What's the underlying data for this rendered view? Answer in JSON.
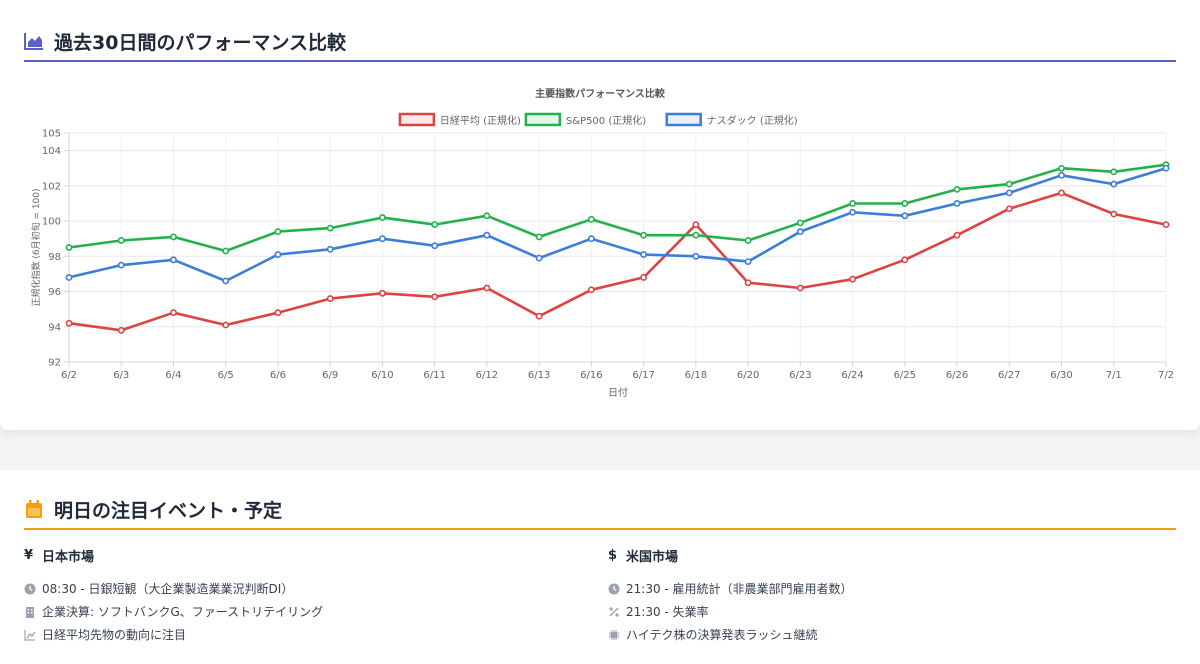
{
  "performance_section": {
    "title": "過去30日間のパフォーマンス比較",
    "icon": "area-chart-icon"
  },
  "chart_data": {
    "type": "line",
    "title": "主要指数パフォーマンス比較",
    "xlabel": "日付",
    "ylabel": "正規化指数 (6月初旬 = 100)",
    "legend_position": "top",
    "grid": true,
    "ylim": [
      92,
      105
    ],
    "yticks": [
      92,
      94,
      96,
      98,
      100,
      102,
      104,
      105
    ],
    "categories": [
      "6/2",
      "6/3",
      "6/4",
      "6/5",
      "6/6",
      "6/9",
      "6/10",
      "6/11",
      "6/12",
      "6/13",
      "6/16",
      "6/17",
      "6/18",
      "6/20",
      "6/23",
      "6/24",
      "6/25",
      "6/26",
      "6/27",
      "6/30",
      "7/1",
      "7/2"
    ],
    "series": [
      {
        "name": "日経平均 (正規化)",
        "color": "#dc4444",
        "values": [
          94.2,
          93.8,
          94.8,
          94.1,
          94.8,
          95.6,
          95.9,
          95.7,
          96.2,
          94.6,
          96.1,
          96.8,
          99.8,
          96.5,
          96.2,
          96.7,
          97.8,
          99.2,
          100.7,
          101.6,
          100.4,
          99.8
        ]
      },
      {
        "name": "S&P500 (正規化)",
        "color": "#22b14c",
        "values": [
          98.5,
          98.9,
          99.1,
          98.3,
          99.4,
          99.6,
          100.2,
          99.8,
          100.3,
          99.1,
          100.1,
          99.2,
          99.2,
          98.9,
          99.9,
          101.0,
          101.0,
          101.8,
          102.1,
          103.0,
          102.8,
          103.2
        ]
      },
      {
        "name": "ナスダック (正規化)",
        "color": "#3b7dd8",
        "values": [
          96.8,
          97.5,
          97.8,
          96.6,
          98.1,
          98.4,
          99.0,
          98.6,
          99.2,
          97.9,
          99.0,
          98.1,
          98.0,
          97.7,
          99.4,
          100.5,
          100.3,
          101.0,
          101.6,
          102.6,
          102.1,
          103.0
        ]
      }
    ]
  },
  "events_section": {
    "title": "明日の注目イベント・予定",
    "icon": "calendar-icon",
    "japan": {
      "symbol": "¥",
      "title": "日本市場",
      "items": [
        {
          "icon": "clock-icon",
          "text": "08:30 - 日銀短観（大企業製造業業況判断DI）"
        },
        {
          "icon": "building-icon",
          "text": "企業決算: ソフトバンクG、ファーストリテイリング"
        },
        {
          "icon": "line-chart-icon",
          "text": "日経平均先物の動向に注目"
        }
      ]
    },
    "us": {
      "symbol": "$",
      "title": "米国市場",
      "items": [
        {
          "icon": "clock-icon",
          "text": "21:30 - 雇用統計（非農業部門雇用者数）"
        },
        {
          "icon": "percent-icon",
          "text": "21:30 - 失業率"
        },
        {
          "icon": "chip-icon",
          "text": "ハイテク株の決算発表ラッシュ継続"
        }
      ]
    }
  }
}
